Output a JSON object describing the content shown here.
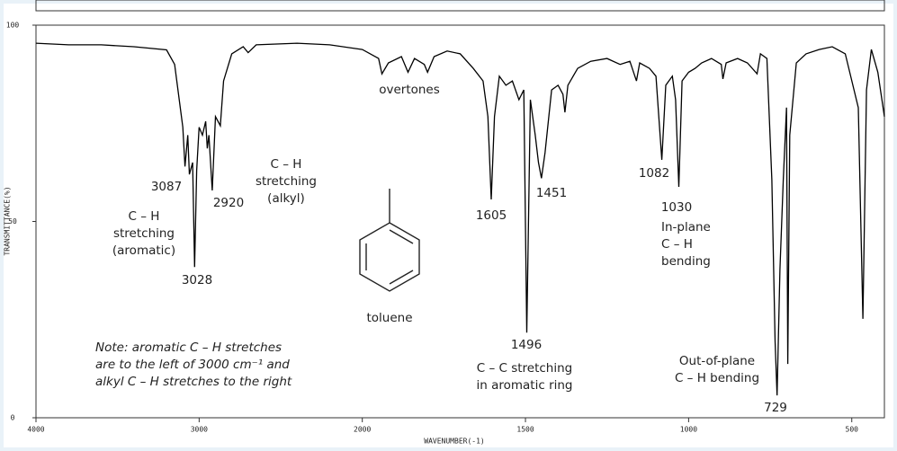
{
  "chart_data": {
    "type": "line",
    "x_label": "WAVENUMBER(-1)",
    "y_label": "TRANSMITTANCE(%)",
    "xlim": [
      4000,
      400
    ],
    "xticks": [
      4000,
      3000,
      2000,
      1500,
      1000,
      500
    ],
    "ylim": [
      0,
      100
    ],
    "yticks": [
      0,
      50,
      100
    ],
    "color": "#000000",
    "x": [
      4000,
      3800,
      3600,
      3400,
      3200,
      3150,
      3100,
      3087,
      3070,
      3060,
      3040,
      3028,
      3015,
      3000,
      2980,
      2960,
      2950,
      2940,
      2920,
      2900,
      2870,
      2850,
      2800,
      2730,
      2700,
      2650,
      2400,
      2200,
      2000,
      1950,
      1940,
      1920,
      1880,
      1860,
      1840,
      1810,
      1800,
      1780,
      1740,
      1700,
      1660,
      1630,
      1615,
      1605,
      1595,
      1580,
      1560,
      1540,
      1520,
      1505,
      1496,
      1485,
      1470,
      1460,
      1451,
      1440,
      1420,
      1400,
      1385,
      1379,
      1370,
      1340,
      1300,
      1250,
      1210,
      1180,
      1160,
      1150,
      1120,
      1100,
      1082,
      1070,
      1050,
      1040,
      1030,
      1020,
      1000,
      980,
      960,
      930,
      900,
      895,
      885,
      850,
      820,
      790,
      780,
      760,
      745,
      735,
      729,
      720,
      710,
      700,
      696,
      690,
      670,
      640,
      600,
      560,
      520,
      480,
      466,
      455,
      440,
      420,
      400
    ],
    "values": [
      95.4,
      95,
      95,
      94.5,
      93.7,
      90,
      74,
      64,
      72,
      62,
      65,
      38.4,
      63,
      74,
      72,
      75.5,
      68.6,
      72,
      57.9,
      76.7,
      74.4,
      85.8,
      92.7,
      94.5,
      93,
      95,
      95.4,
      95,
      93.8,
      91.5,
      87.6,
      90.4,
      92,
      88,
      91.5,
      90,
      88,
      92,
      93.4,
      92.7,
      89,
      85.8,
      76.7,
      55.6,
      76.7,
      87,
      84.7,
      85.8,
      81,
      83.5,
      21.7,
      81,
      72,
      65,
      61,
      67.5,
      83.5,
      84.7,
      82.4,
      77.8,
      84.7,
      89,
      90.8,
      91.5,
      90,
      90.8,
      85.8,
      90.4,
      89,
      87,
      65.7,
      84.7,
      87,
      81,
      58.8,
      85.8,
      88,
      89,
      90.4,
      91.5,
      90,
      86.3,
      90.4,
      91.5,
      90.4,
      87.6,
      92.7,
      91.5,
      60.6,
      19.5,
      5.7,
      37.8,
      60.6,
      79,
      13.7,
      72,
      90.4,
      92.7,
      93.8,
      94.5,
      92.7,
      79,
      25.2,
      83.5,
      93.8,
      88,
      76.7
    ],
    "annotations": [
      {
        "lines": [
          "overtones"
        ],
        "color": "#222222"
      },
      {
        "lines": [
          "C – H",
          "stretching",
          "(alkyl)"
        ],
        "color": "#222222"
      },
      {
        "lines": [
          "3087"
        ],
        "color": "#2a78c0"
      },
      {
        "lines": [
          "2920"
        ],
        "color": "#2a78c0"
      },
      {
        "lines": [
          "C – H",
          "stretching",
          "(aromatic)"
        ],
        "color": "#222222"
      },
      {
        "lines": [
          "3028"
        ],
        "color": "#2a78c0"
      },
      {
        "lines": [
          "toluene"
        ],
        "color": "#222222"
      },
      {
        "lines": [
          "1605"
        ],
        "color": "#2a78c0"
      },
      {
        "lines": [
          "1451"
        ],
        "color": "#2a78c0"
      },
      {
        "lines": [
          "1496"
        ],
        "color": "#2a78c0"
      },
      {
        "lines": [
          "C – C stretching",
          "in aromatic ring"
        ],
        "color": "#222222"
      },
      {
        "lines": [
          "1082"
        ],
        "color": "#2a78c0"
      },
      {
        "lines": [
          "1030"
        ],
        "color": "#2a78c0"
      },
      {
        "lines": [
          "In-plane",
          "C – H",
          "bending"
        ],
        "color": "#222222"
      },
      {
        "lines": [
          "Out-of-plane",
          "C – H bending"
        ],
        "color": "#222222"
      },
      {
        "lines": [
          "729"
        ],
        "color": "#2a78c0"
      }
    ],
    "note": [
      "Note: aromatic C – H stretches",
      "are to the left of 3000 cm⁻¹ and",
      "alkyl C – H stretches to the right"
    ]
  }
}
